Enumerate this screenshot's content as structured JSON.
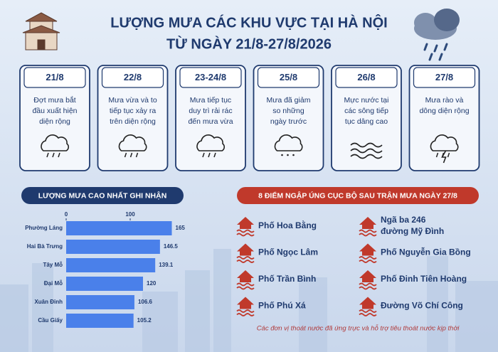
{
  "header": {
    "title_line1": "LƯỢNG MƯA CÁC KHU VỰC TẠI HÀ NỘI",
    "title_line2": "TỪ NGÀY 21/8-27/8/2026"
  },
  "cards": [
    {
      "date": "21/8",
      "lines": [
        "Đợt mưa bắt",
        "đầu xuất hiện",
        "diện rộng"
      ]
    },
    {
      "date": "22/8",
      "lines": [
        "Mưa vừa và to",
        "tiếp tục xảy ra",
        "trên diện rộng"
      ]
    },
    {
      "date": "23-24/8",
      "lines": [
        "Mưa tiếp tục",
        "duy trì rải rác",
        "đến mưa vừa"
      ]
    },
    {
      "date": "25/8",
      "lines": [
        "Mưa đã giảm",
        "so những",
        "ngày trước"
      ]
    },
    {
      "date": "26/8",
      "lines": [
        "Mực nước tại",
        "các sông tiếp",
        "tục dâng cao"
      ]
    },
    {
      "date": "27/8",
      "lines": [
        "Mưa rào và",
        "dông diện rộng"
      ]
    }
  ],
  "chart_data": {
    "type": "hbar",
    "title": "LƯỢNG MƯA CAO NHẤT GHI NHẬN",
    "categories": [
      "Phường Láng",
      "Hai Bà Trưng",
      "Tây Mỗ",
      "Đại Mỗ",
      "Xuân Đỉnh",
      "Cầu Giấy"
    ],
    "values": [
      165,
      146.5,
      139.1,
      120,
      106.6,
      105.2
    ],
    "color": "#4a80ea",
    "xlim": [
      0,
      170
    ],
    "xticks": [
      0,
      100
    ]
  },
  "flood_points": {
    "title": "8 ĐIỂM NGẬP ÚNG CỤC BỘ SAU TRẬN MƯA NGÀY 27/8",
    "items": [
      {
        "lines": [
          "Phố Hoa Bằng"
        ]
      },
      {
        "lines": [
          "Ngã ba 246",
          "đường Mỹ Đình"
        ]
      },
      {
        "lines": [
          "Phố Ngọc Lâm"
        ]
      },
      {
        "lines": [
          "Phố Nguyễn Gia Bồng"
        ]
      },
      {
        "lines": [
          "Phố Trần Bình"
        ]
      },
      {
        "lines": [
          "Phố Đinh Tiên Hoàng"
        ]
      },
      {
        "lines": [
          "Phố Phú Xá"
        ]
      },
      {
        "lines": [
          "Đường Võ Chí Công"
        ]
      }
    ],
    "note": "Các đơn vị thoát nước đã ứng trực và hỗ trợ tiêu thoát nước kịp thời"
  }
}
